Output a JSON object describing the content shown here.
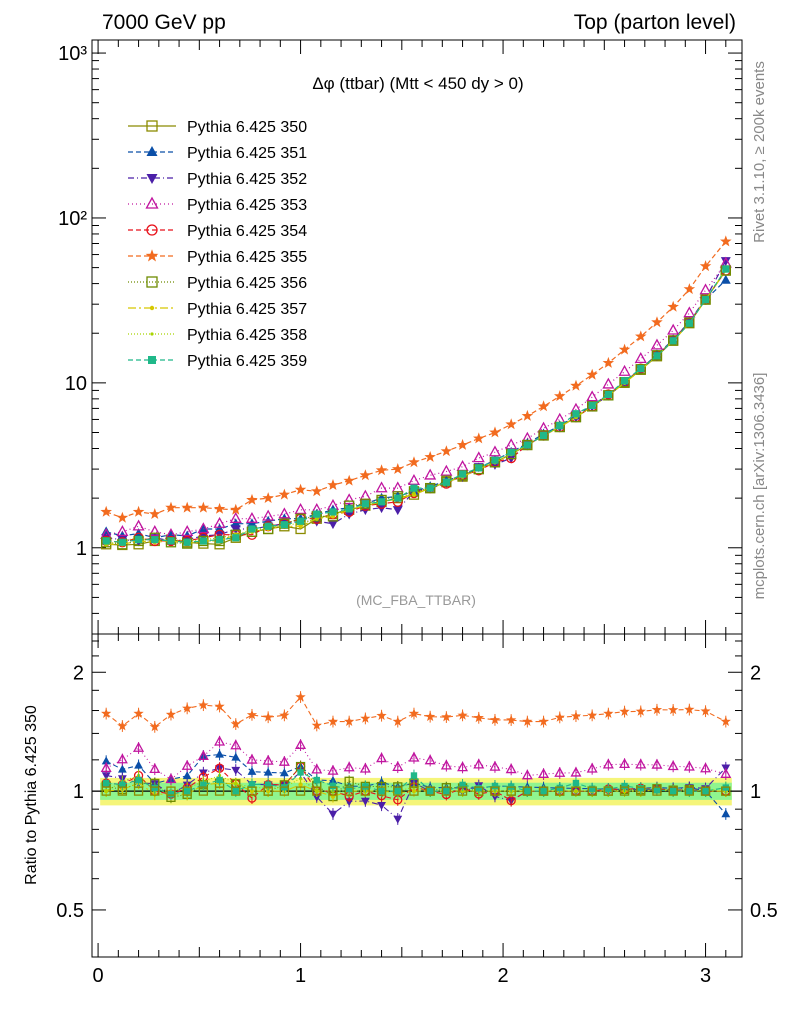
{
  "header": {
    "left": "7000 GeV pp",
    "right": "Top (parton level)"
  },
  "side_labels": {
    "rivet": "Rivet 3.1.10, ≥ 200k events",
    "mcplots": "mcplots.cern.ch [arXiv:1306.3436]"
  },
  "watermark": "(MC_FBA_TTBAR)",
  "chart_data": [
    {
      "type": "line",
      "panel": "main",
      "title": "Δφ (ttbar) (Mtt < 450 dy > 0)",
      "xlabel": "",
      "ylabel": "",
      "yscale": "log",
      "xlim": [
        -0.03,
        3.18
      ],
      "ylim": [
        0.3,
        1200
      ],
      "yticks": [
        {
          "v": 1,
          "label": "1"
        },
        {
          "v": 10,
          "label": "10"
        },
        {
          "v": 100,
          "label": "10²"
        },
        {
          "v": 1000,
          "label": "10³"
        }
      ],
      "xticks": [
        0,
        1,
        2,
        3
      ],
      "legend_position": "top-left",
      "x": [
        0.04,
        0.12,
        0.2,
        0.28,
        0.36,
        0.44,
        0.52,
        0.6,
        0.68,
        0.76,
        0.84,
        0.92,
        1.0,
        1.08,
        1.16,
        1.24,
        1.32,
        1.4,
        1.48,
        1.56,
        1.64,
        1.72,
        1.8,
        1.88,
        1.96,
        2.04,
        2.12,
        2.2,
        2.28,
        2.36,
        2.44,
        2.52,
        2.6,
        2.68,
        2.76,
        2.84,
        2.92,
        3.0,
        3.1
      ],
      "series": [
        {
          "name": "Pythia 6.425 350",
          "color": "#8b8b00",
          "marker": "square-open",
          "dash": "",
          "values": [
            1.05,
            1.04,
            1.05,
            1.1,
            1.12,
            1.08,
            1.06,
            1.05,
            1.15,
            1.25,
            1.3,
            1.35,
            1.3,
            1.5,
            1.6,
            1.7,
            1.8,
            1.9,
            2.0,
            2.1,
            2.3,
            2.5,
            2.7,
            3.0,
            3.3,
            3.7,
            4.2,
            4.8,
            5.4,
            6.2,
            7.2,
            8.4,
            10.0,
            12.0,
            14.5,
            18.0,
            23.0,
            32.0,
            48.0
          ]
        },
        {
          "name": "Pythia 6.425 351",
          "color": "#0b4fa8",
          "marker": "triangle-up",
          "dash": "5,3",
          "values": [
            1.25,
            1.18,
            1.22,
            1.15,
            1.2,
            1.18,
            1.3,
            1.3,
            1.4,
            1.4,
            1.45,
            1.5,
            1.5,
            1.6,
            1.7,
            1.75,
            1.85,
            2.0,
            2.05,
            2.2,
            2.35,
            2.55,
            2.75,
            3.05,
            3.4,
            3.8,
            4.3,
            4.9,
            5.5,
            6.3,
            7.3,
            8.5,
            10.1,
            12.2,
            14.8,
            18.3,
            23.5,
            32.0,
            42.0
          ]
        },
        {
          "name": "Pythia 6.425 352",
          "color": "#4b1fa8",
          "marker": "triangle-down",
          "dash": "6,3,1,3",
          "values": [
            1.15,
            1.12,
            1.1,
            1.15,
            1.1,
            1.12,
            1.18,
            1.2,
            1.3,
            1.3,
            1.35,
            1.4,
            1.45,
            1.45,
            1.4,
            1.6,
            1.7,
            1.75,
            1.7,
            2.2,
            2.3,
            2.5,
            2.7,
            3.1,
            3.2,
            3.5,
            4.2,
            4.8,
            5.4,
            6.2,
            7.2,
            8.4,
            10.1,
            12.1,
            14.6,
            18.2,
            23.5,
            32.5,
            55.0
          ]
        },
        {
          "name": "Pythia 6.425 353",
          "color": "#c0159f",
          "marker": "triangle-open",
          "dash": "1,3",
          "values": [
            1.2,
            1.25,
            1.35,
            1.25,
            1.2,
            1.25,
            1.3,
            1.4,
            1.5,
            1.5,
            1.55,
            1.6,
            1.7,
            1.7,
            1.8,
            1.95,
            2.05,
            2.3,
            2.3,
            2.55,
            2.75,
            2.9,
            3.1,
            3.5,
            3.8,
            4.2,
            4.6,
            5.3,
            6.0,
            6.9,
            8.2,
            9.8,
            11.7,
            14.0,
            16.9,
            20.8,
            26.5,
            36.5,
            53.0
          ]
        },
        {
          "name": "Pythia 6.425 354",
          "color": "#e8101a",
          "marker": "circle-open",
          "dash": "5,3",
          "values": [
            1.1,
            1.08,
            1.15,
            1.1,
            1.1,
            1.1,
            1.15,
            1.2,
            1.2,
            1.2,
            1.35,
            1.4,
            1.5,
            1.5,
            1.6,
            1.65,
            1.8,
            1.85,
            1.9,
            2.15,
            2.3,
            2.45,
            2.75,
            2.95,
            3.3,
            3.5,
            4.2,
            4.8,
            5.4,
            6.2,
            7.2,
            8.5,
            10.1,
            12.2,
            14.7,
            18.1,
            23.2,
            32.0,
            48.0
          ]
        },
        {
          "name": "Pythia 6.425 355",
          "color": "#f26b1f",
          "marker": "star",
          "dash": "5,3",
          "values": [
            1.65,
            1.52,
            1.65,
            1.6,
            1.75,
            1.75,
            1.75,
            1.72,
            1.7,
            1.95,
            2.0,
            2.1,
            2.25,
            2.2,
            2.4,
            2.55,
            2.75,
            2.95,
            3.0,
            3.3,
            3.55,
            3.85,
            4.2,
            4.6,
            5.0,
            5.6,
            6.3,
            7.2,
            8.3,
            9.6,
            11.2,
            13.2,
            15.9,
            19.1,
            23.3,
            28.9,
            37.0,
            51.0,
            72.0
          ]
        },
        {
          "name": "Pythia 6.425 356",
          "color": "#6e8b00",
          "marker": "square-open",
          "dash": "1,2",
          "values": [
            1.08,
            1.05,
            1.1,
            1.15,
            1.08,
            1.06,
            1.1,
            1.1,
            1.2,
            1.25,
            1.3,
            1.4,
            1.5,
            1.55,
            1.55,
            1.8,
            1.85,
            1.95,
            2.05,
            2.2,
            2.3,
            2.55,
            2.75,
            3.0,
            3.3,
            3.7,
            4.2,
            4.8,
            5.4,
            6.2,
            7.2,
            8.4,
            10.1,
            12.1,
            14.7,
            18.1,
            23.2,
            32.0,
            48.0
          ]
        },
        {
          "name": "Pythia 6.425 357",
          "color": "#d6c800",
          "marker": "dot",
          "dash": "8,3,2,3",
          "values": [
            1.05,
            1.05,
            1.1,
            1.08,
            1.1,
            1.06,
            1.1,
            1.1,
            1.2,
            1.25,
            1.3,
            1.35,
            1.35,
            1.5,
            1.55,
            1.7,
            1.8,
            1.9,
            1.98,
            2.1,
            2.3,
            2.5,
            2.7,
            3.0,
            3.3,
            3.7,
            4.2,
            4.8,
            5.4,
            6.2,
            7.2,
            8.4,
            10.0,
            12.0,
            14.6,
            18.0,
            23.0,
            32.0,
            48.0
          ]
        },
        {
          "name": "Pythia 6.425 358",
          "color": "#a8d400",
          "marker": "dot-small",
          "dash": "1,2",
          "values": [
            1.05,
            1.1,
            1.15,
            1.1,
            1.12,
            1.1,
            1.12,
            1.15,
            1.2,
            1.28,
            1.32,
            1.38,
            1.4,
            1.5,
            1.6,
            1.7,
            1.8,
            1.9,
            2.0,
            2.15,
            2.3,
            2.5,
            2.7,
            3.0,
            3.3,
            3.7,
            4.2,
            4.8,
            5.4,
            6.2,
            7.2,
            8.4,
            10.0,
            12.0,
            14.6,
            18.0,
            23.0,
            32.0,
            49.0
          ]
        },
        {
          "name": "Pythia 6.425 359",
          "color": "#1fb889",
          "marker": "square-filled",
          "dash": "5,3",
          "values": [
            1.1,
            1.08,
            1.12,
            1.12,
            1.1,
            1.08,
            1.1,
            1.12,
            1.15,
            1.3,
            1.35,
            1.38,
            1.45,
            1.6,
            1.65,
            1.72,
            1.85,
            1.9,
            2.0,
            2.3,
            2.3,
            2.5,
            2.8,
            3.05,
            3.4,
            3.8,
            4.2,
            4.8,
            5.5,
            6.5,
            7.3,
            8.5,
            10.3,
            12.2,
            14.6,
            18.0,
            23.0,
            32.0,
            49.0
          ]
        }
      ]
    },
    {
      "type": "line",
      "panel": "ratio",
      "title": "",
      "xlabel": "",
      "ylabel": "Ratio to Pythia 6.425 350",
      "yscale": "log",
      "ylim": [
        0.38,
        2.5
      ],
      "yticks": [
        {
          "v": 0.5,
          "label": "0.5"
        },
        {
          "v": 1,
          "label": "1"
        },
        {
          "v": 2,
          "label": "2"
        }
      ],
      "xticks": [
        0,
        1,
        2,
        3
      ],
      "reference_band": {
        "inner": 0.05,
        "outer": 0.08
      }
    }
  ]
}
